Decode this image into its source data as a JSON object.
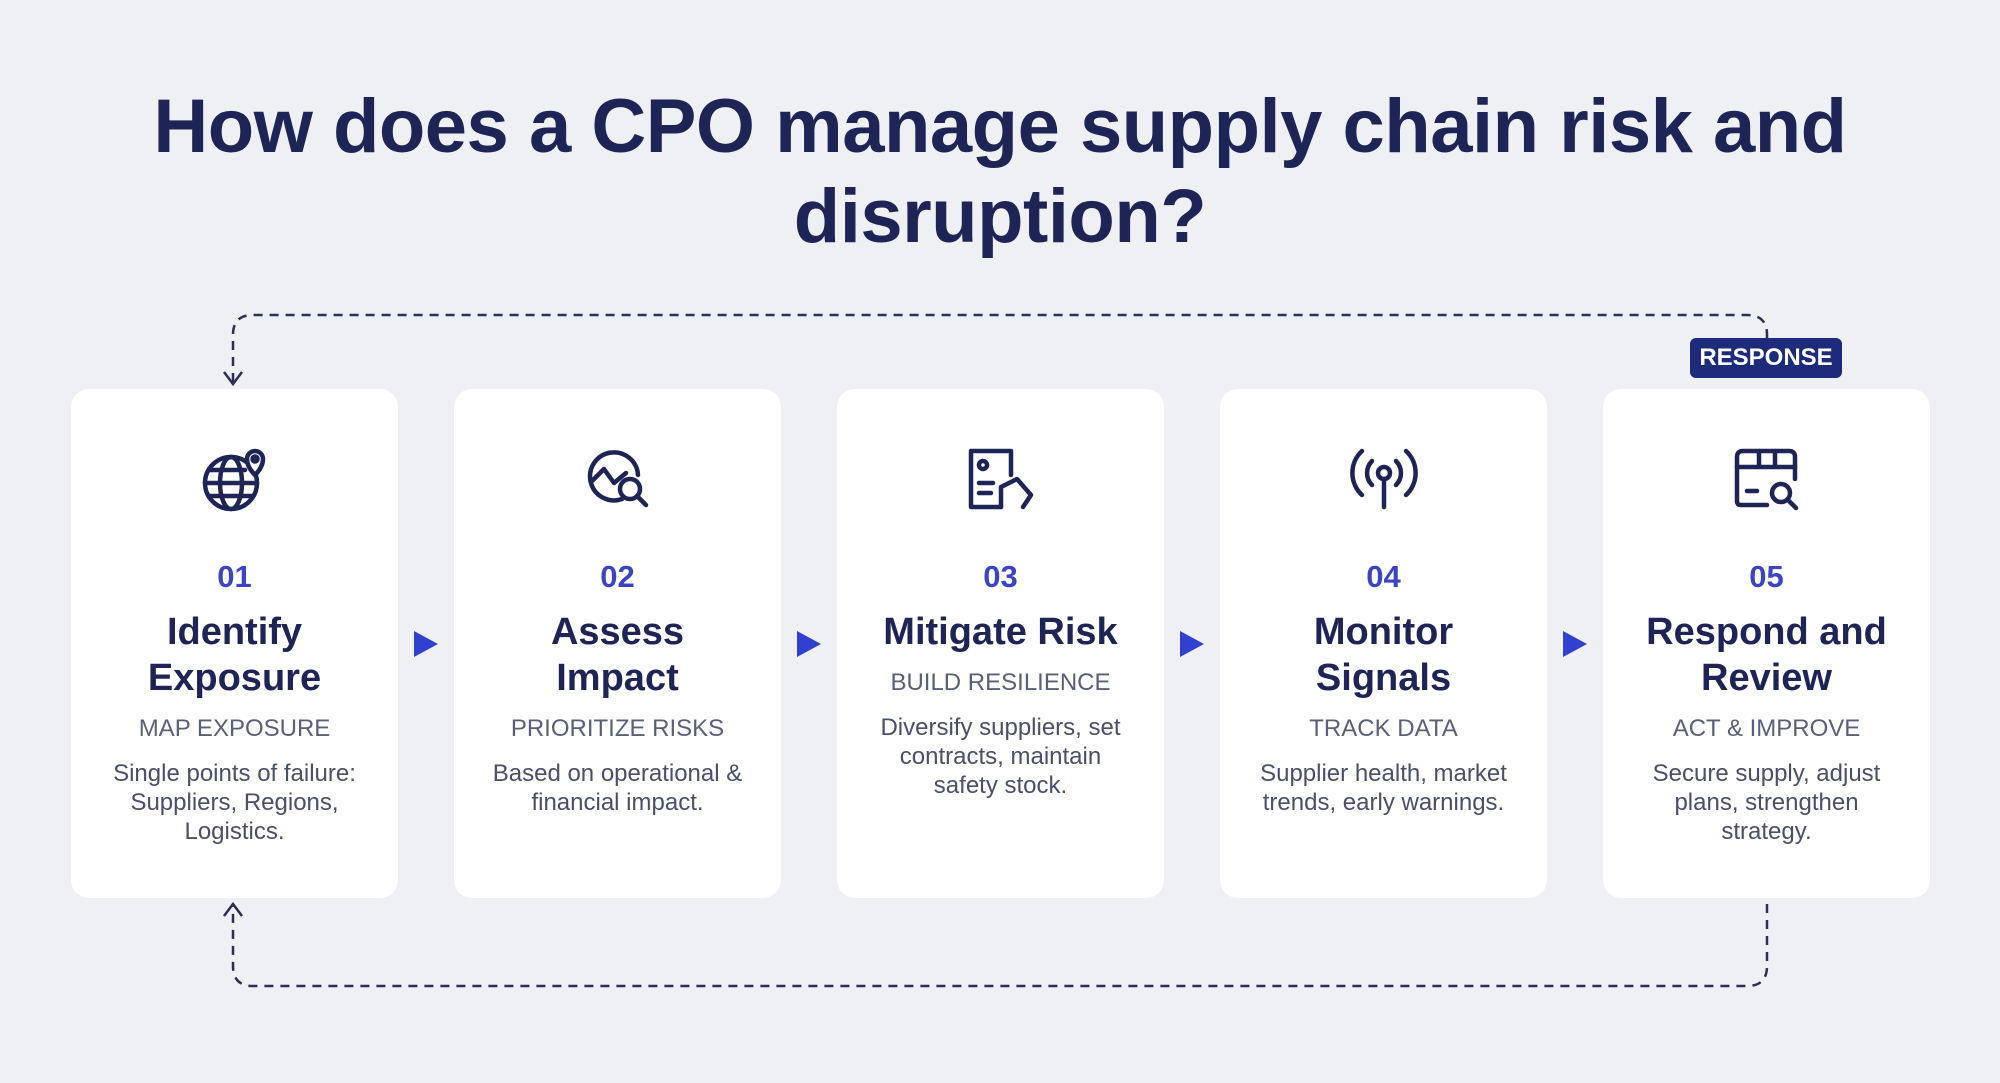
{
  "title": "How does a CPO manage supply chain risk and disruption?",
  "badge": "RESPONSE",
  "steps": [
    {
      "number": "01",
      "title": "Identify Exposure",
      "subtitle": "MAP EXPOSURE",
      "description": "Single points of failure: Suppliers, Regions, Logistics."
    },
    {
      "number": "02",
      "title": "Assess Impact",
      "subtitle": "PRIORITIZE RISKS",
      "description": "Based on operational & financial impact."
    },
    {
      "number": "03",
      "title": "Mitigate Risk",
      "subtitle": "BUILD RESILIENCE",
      "description": "Diversify suppliers, set contracts, maintain safety stock."
    },
    {
      "number": "04",
      "title": "Monitor Signals",
      "subtitle": "TRACK DATA",
      "description": "Supplier health, market trends, early warnings."
    },
    {
      "number": "05",
      "title": "Respond and Review",
      "subtitle": "ACT & IMPROVE",
      "description": "Secure supply, adjust plans, strengthen strategy."
    }
  ]
}
